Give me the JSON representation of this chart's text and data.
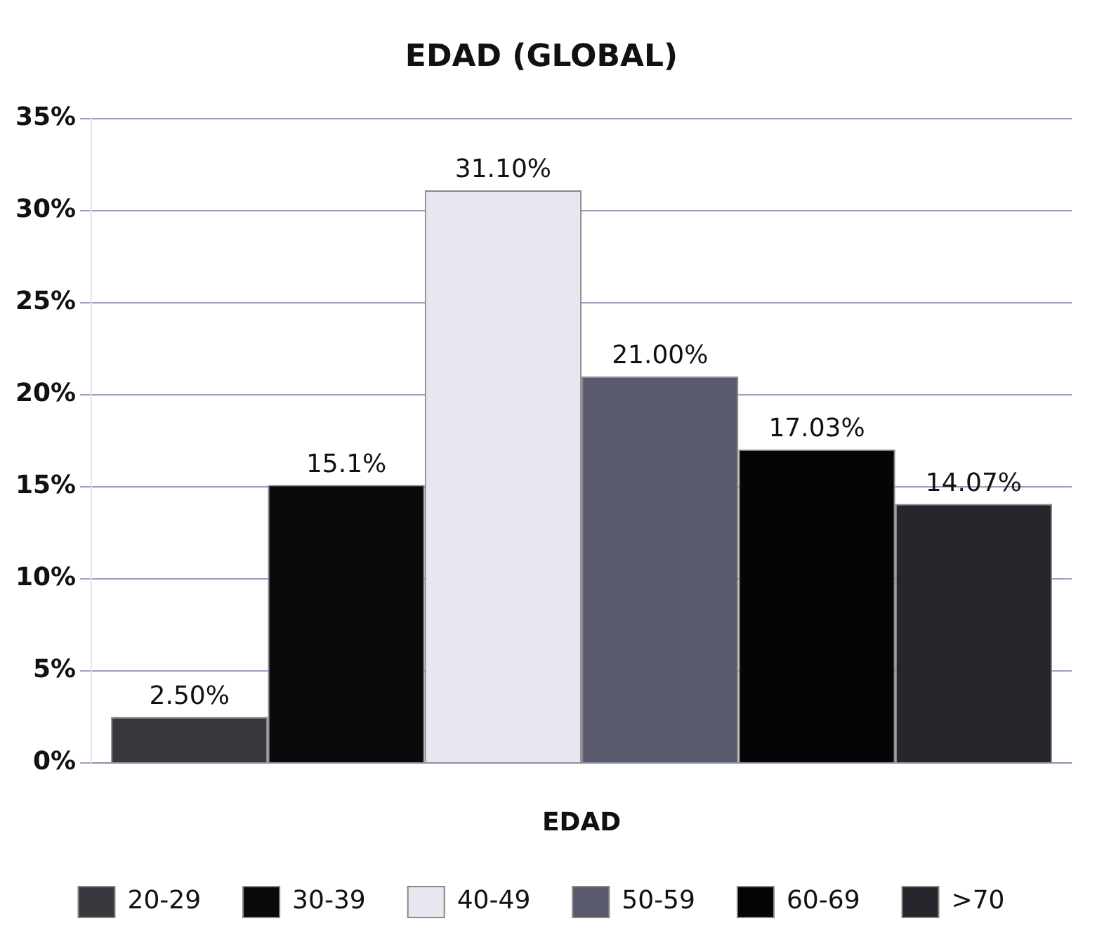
{
  "chart_data": {
    "type": "bar",
    "title": "EDAD (GLOBAL)",
    "xlabel": "EDAD",
    "categories": [
      null
    ],
    "series": [
      {
        "name": "20-29",
        "color": "#38383e",
        "values": [
          2.5
        ],
        "value_labels": [
          "2.50%"
        ]
      },
      {
        "name": "30-39",
        "color": "#0a0a0a",
        "values": [
          15.1
        ],
        "value_labels": [
          "15.1%"
        ]
      },
      {
        "name": "40-49",
        "color": "#e8e6ee",
        "values": [
          31.1
        ],
        "value_labels": [
          "31.10%"
        ]
      },
      {
        "name": "50-59",
        "color": "#5a5a6e",
        "values": [
          21
        ],
        "value_labels": [
          "21.00%"
        ]
      },
      {
        "name": "60-69",
        "color": "#050505",
        "values": [
          17.03
        ],
        "value_labels": [
          "17.03%"
        ]
      },
      {
        "name": ">70",
        "color": "#26262c",
        "values": [
          14.07
        ],
        "value_labels": [
          "14.07%"
        ]
      }
    ],
    "ylim": [
      0,
      35
    ],
    "yticks": [
      {
        "value": 0,
        "label": "0%"
      },
      {
        "value": 5,
        "label": "5%"
      },
      {
        "value": 10,
        "label": "10%"
      },
      {
        "value": 15,
        "label": "15%"
      },
      {
        "value": 20,
        "label": "20%"
      },
      {
        "value": 25,
        "label": "25%"
      },
      {
        "value": 30,
        "label": "30%"
      },
      {
        "value": 35,
        "label": "35%"
      }
    ],
    "grid": "y",
    "legend": "bottom"
  }
}
